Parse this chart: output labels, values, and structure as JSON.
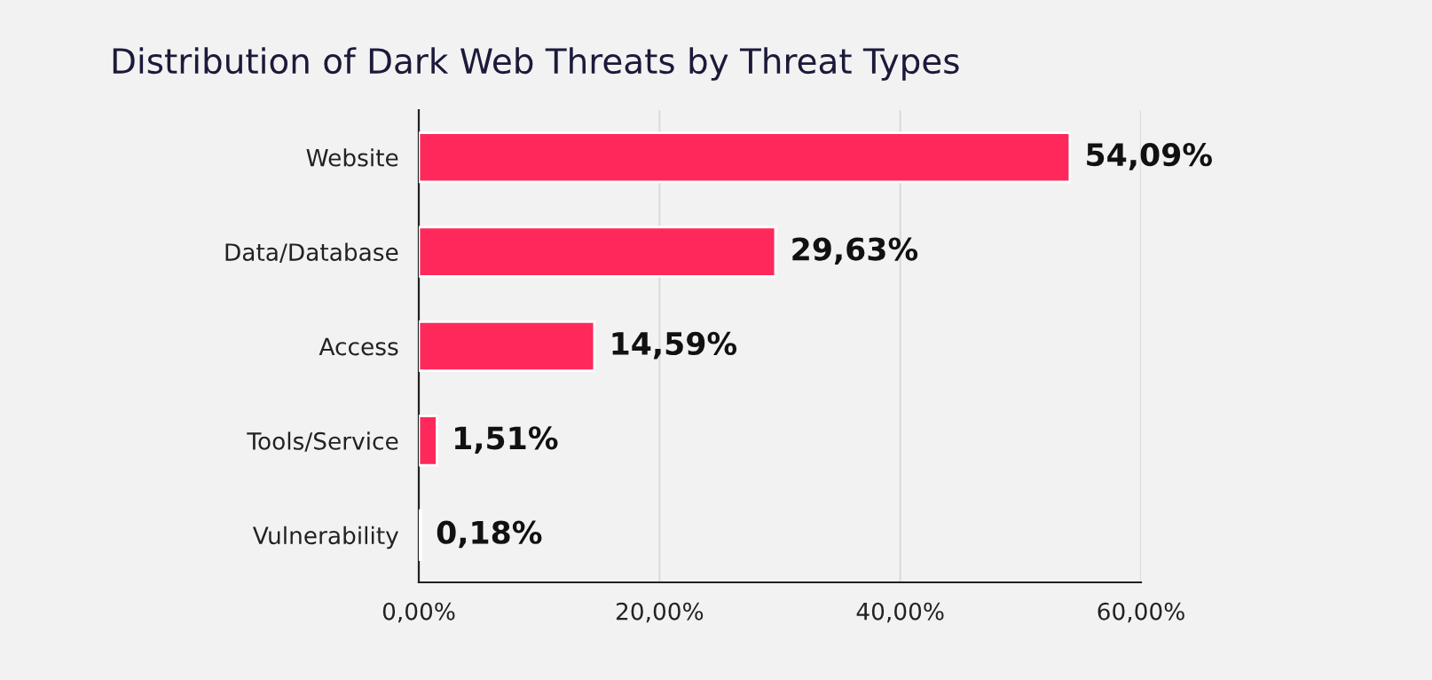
{
  "chart_data": {
    "type": "bar",
    "orientation": "horizontal",
    "title": "Distribution of Dark Web Threats by Threat Types",
    "categories": [
      "Website",
      "Data/Database",
      "Access",
      "Tools/Service",
      "Vulnerability"
    ],
    "values": [
      54.09,
      29.63,
      14.59,
      1.51,
      0.18
    ],
    "value_labels": [
      "54,09%",
      "29,63%",
      "14,59%",
      "1,51%",
      "0,18%"
    ],
    "color": "#ff285a",
    "xlim": [
      0,
      60
    ],
    "xticks": [
      {
        "value": 0,
        "label": "0,00%"
      },
      {
        "value": 20,
        "label": "20,00%"
      },
      {
        "value": 40,
        "label": "40,00%"
      },
      {
        "value": 60,
        "label": "60,00%"
      }
    ],
    "grid": "x"
  }
}
